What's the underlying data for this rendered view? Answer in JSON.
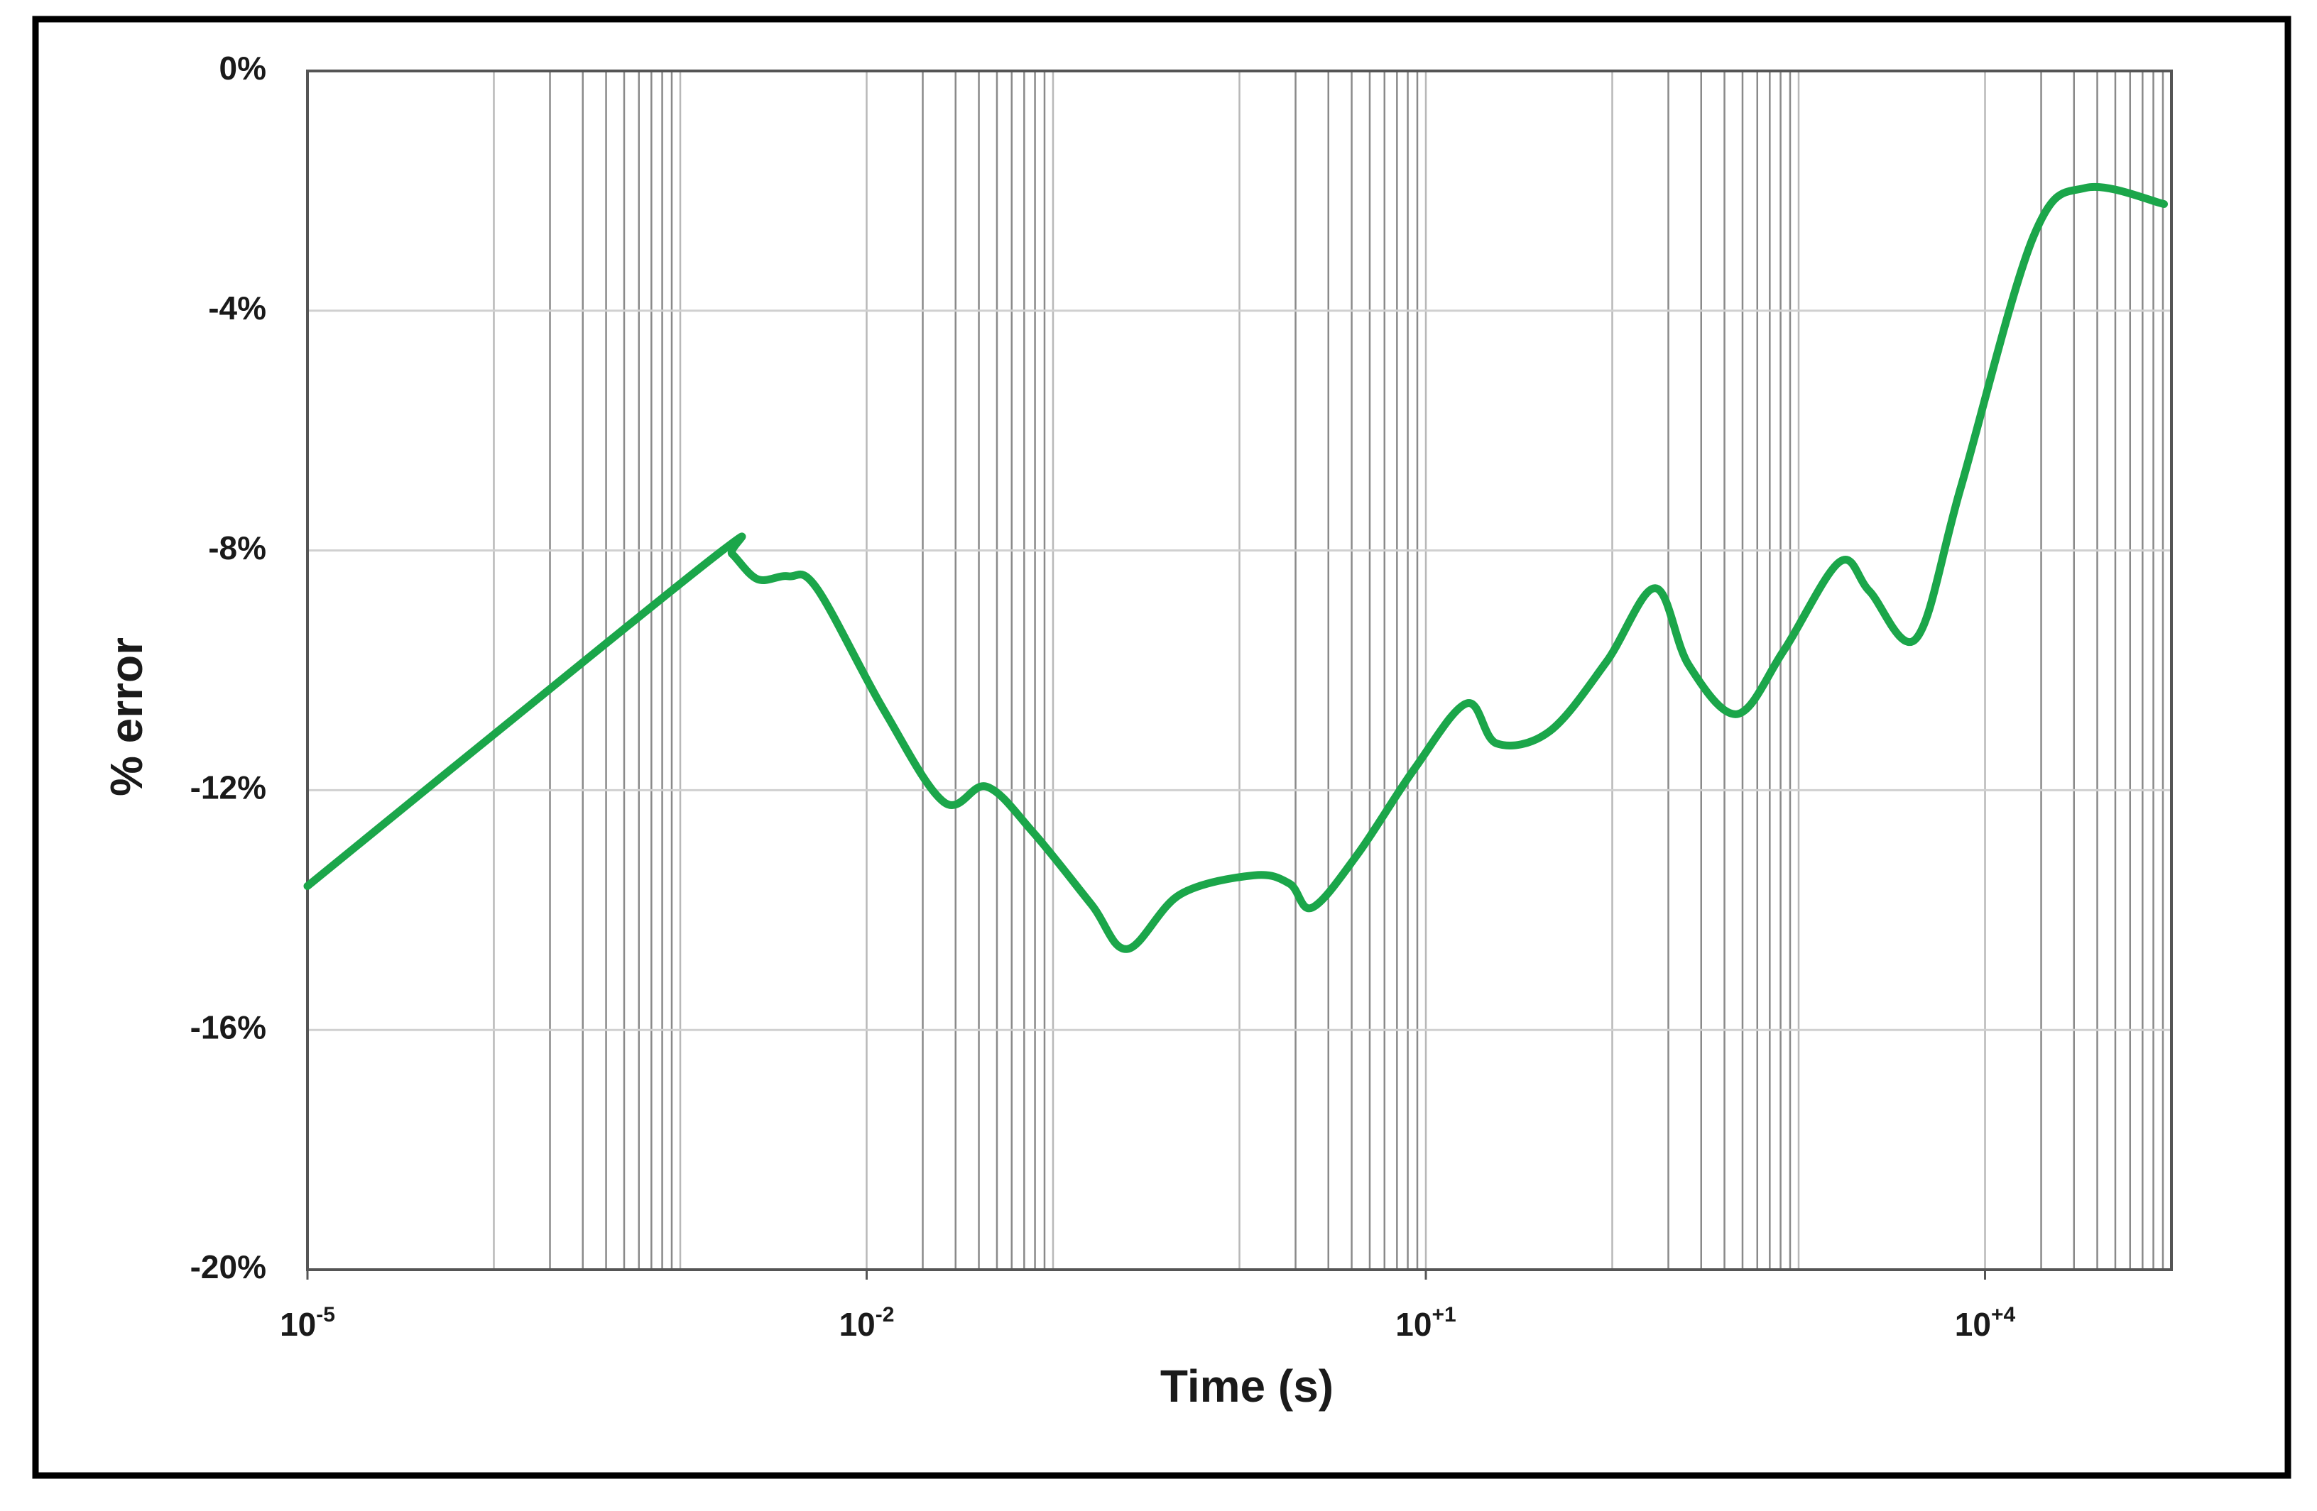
{
  "chart_data": {
    "type": "line",
    "x_label": "Time (s)",
    "y_label": "% error",
    "x_log": true,
    "grid": true,
    "xlim": [
      1e-05,
      100000
    ],
    "ylim": [
      -20,
      0
    ],
    "xticks": [
      {
        "value": 1e-05,
        "label": "10",
        "exponent": "-5"
      },
      {
        "value": 0.01,
        "label": "10",
        "exponent": "-2"
      },
      {
        "value": 10,
        "label": "10",
        "exponent": "+1"
      },
      {
        "value": 10000,
        "label": "10",
        "exponent": "+4"
      }
    ],
    "yticks": [
      {
        "value": -20,
        "label": "-20%"
      },
      {
        "value": -16,
        "label": "-16%"
      },
      {
        "value": -12,
        "label": "-12%"
      },
      {
        "value": -8,
        "label": "-8%"
      },
      {
        "value": -4,
        "label": "-4%"
      },
      {
        "value": 0,
        "label": "0%"
      }
    ],
    "series": [
      {
        "color": "#1ba64a",
        "x": [
          1e-05,
          0.0001,
          0.0017,
          0.0019,
          0.0026,
          0.0038,
          0.0054,
          0.0123,
          0.026,
          0.044,
          0.078,
          0.16,
          0.25,
          0.48,
          1.2,
          1.86,
          2.45,
          4.3,
          8.7,
          16.6,
          24,
          46,
          93,
          170,
          257,
          468,
          832,
          1660,
          2400,
          4270,
          7410,
          18200,
          34700,
          91200
        ],
        "values": [
          -13.6,
          -11.07,
          -7.99,
          -8.06,
          -8.48,
          -8.43,
          -8.63,
          -10.65,
          -12.2,
          -11.94,
          -12.7,
          -13.9,
          -14.65,
          -13.74,
          -13.42,
          -13.56,
          -13.96,
          -13.07,
          -11.64,
          -10.55,
          -11.22,
          -11.02,
          -9.86,
          -8.63,
          -9.91,
          -10.73,
          -9.67,
          -8.19,
          -8.68,
          -9.47,
          -6.95,
          -2.76,
          -1.95,
          -2.22
        ]
      }
    ]
  }
}
